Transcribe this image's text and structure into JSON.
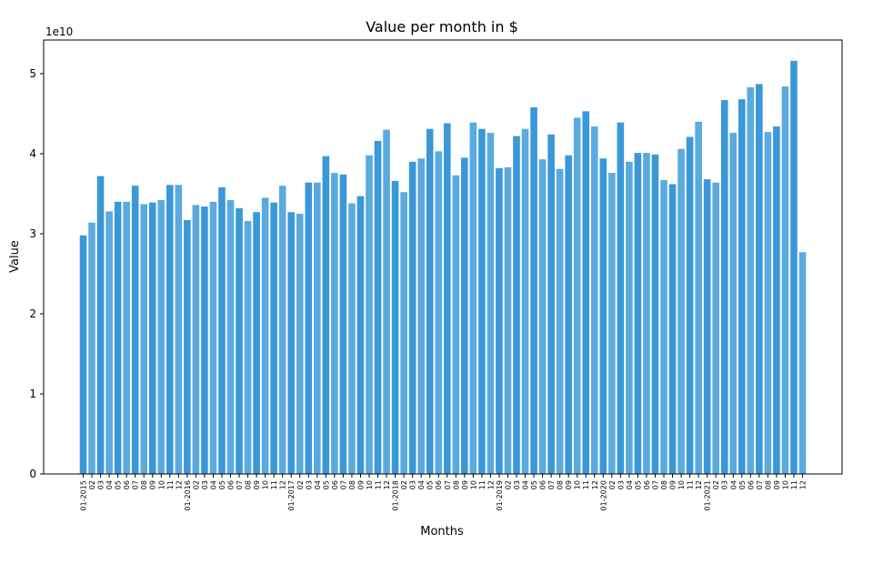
{
  "chart_data": {
    "type": "bar",
    "title": "Value per month in $",
    "xlabel": "Months",
    "ylabel": "Value",
    "y_offset_label": "1e10",
    "y_scale": 10000000000,
    "ylim": [
      0,
      5.42
    ],
    "yticks": [
      0,
      1,
      2,
      3,
      4,
      5
    ],
    "ytick_labels": [
      "0",
      "1",
      "2",
      "3",
      "4",
      "5"
    ],
    "grid": false,
    "colors": {
      "primary": "#3a98d8",
      "alternate": "#5aaae0"
    },
    "categories": [
      "01-2015",
      "02",
      "03",
      "04",
      "05",
      "06",
      "07",
      "08",
      "09",
      "10",
      "11",
      "12",
      "01-2016",
      "02",
      "03",
      "04",
      "05",
      "06",
      "07",
      "08",
      "09",
      "10",
      "11",
      "12",
      "01-2017",
      "02",
      "03",
      "04",
      "05",
      "06",
      "07",
      "08",
      "09",
      "10",
      "11",
      "12",
      "01-2018",
      "02",
      "03",
      "04",
      "05",
      "06",
      "07",
      "08",
      "09",
      "10",
      "11",
      "12",
      "01-2019",
      "02",
      "03",
      "04",
      "05",
      "06",
      "07",
      "08",
      "09",
      "10",
      "11",
      "12",
      "01-2020",
      "02",
      "03",
      "04",
      "05",
      "06",
      "07",
      "08",
      "09",
      "10",
      "11",
      "12",
      "01-2021",
      "02",
      "03",
      "04",
      "05",
      "06",
      "07",
      "08",
      "09",
      "10",
      "11",
      "12"
    ],
    "values": [
      2.98,
      3.14,
      3.72,
      3.28,
      3.4,
      3.4,
      3.6,
      3.37,
      3.39,
      3.42,
      3.61,
      3.61,
      3.17,
      3.36,
      3.34,
      3.4,
      3.58,
      3.42,
      3.32,
      3.16,
      3.27,
      3.45,
      3.39,
      3.6,
      3.27,
      3.25,
      3.64,
      3.64,
      3.97,
      3.76,
      3.74,
      3.38,
      3.47,
      3.98,
      4.16,
      4.3,
      3.66,
      3.52,
      3.9,
      3.94,
      4.31,
      4.03,
      4.38,
      3.73,
      3.95,
      4.39,
      4.31,
      4.26,
      3.82,
      3.83,
      4.22,
      4.31,
      4.58,
      3.93,
      4.24,
      3.81,
      3.98,
      4.45,
      4.53,
      4.34,
      3.94,
      3.76,
      4.39,
      3.9,
      4.01,
      4.01,
      3.99,
      3.67,
      3.62,
      4.06,
      4.21,
      4.4,
      3.68,
      3.64,
      4.67,
      4.26,
      4.68,
      4.83,
      4.87,
      4.27,
      4.34,
      4.84,
      5.16,
      2.77
    ]
  }
}
